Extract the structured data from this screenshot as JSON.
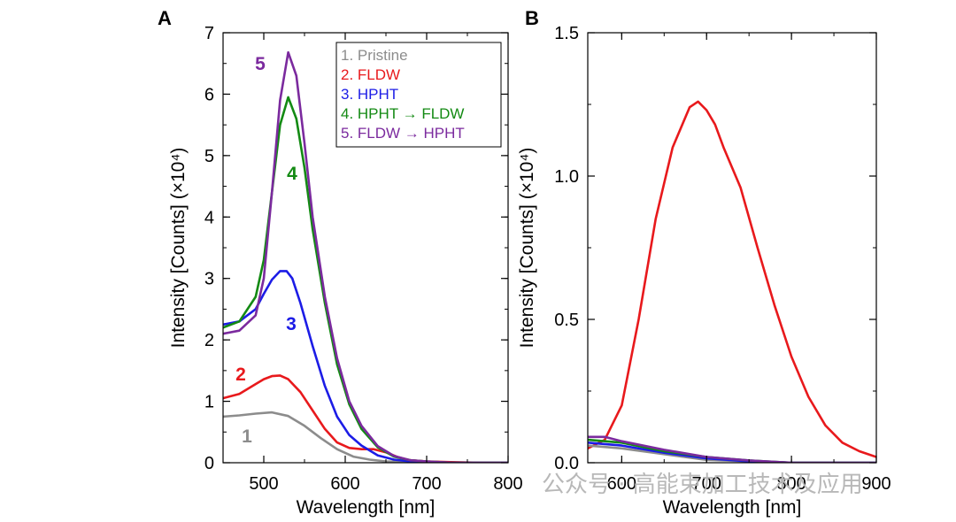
{
  "watermark": "公众号 · 高能束加工技术及应用",
  "chart_data": [
    {
      "type": "line",
      "panel": "A",
      "xlabel": "Wavelength [nm]",
      "ylabel": "Intensity [Counts] (×10⁴)",
      "xlim": [
        450,
        800
      ],
      "ylim": [
        0,
        7
      ],
      "xticks": [
        "500",
        "600",
        "700",
        "800"
      ],
      "yticks": [
        "0",
        "1",
        "2",
        "3",
        "4",
        "5",
        "6",
        "7"
      ],
      "legend": {
        "position": "top-right",
        "entries": [
          "1. Pristine",
          "2. FLDW",
          "3. HPHT",
          "4. HPHT → FLDW",
          "5. FLDW → HPHT"
        ]
      },
      "series": [
        {
          "name": "1. Pristine",
          "label": "1",
          "color": "#8c8c8c",
          "x": [
            450,
            470,
            490,
            510,
            530,
            550,
            570,
            590,
            610,
            630,
            650,
            680,
            720,
            760,
            800
          ],
          "y": [
            0.75,
            0.77,
            0.8,
            0.82,
            0.76,
            0.6,
            0.4,
            0.22,
            0.1,
            0.05,
            0.02,
            0.01,
            0.0,
            0.0,
            0.0
          ]
        },
        {
          "name": "2. FLDW",
          "label": "2",
          "color": "#e8191c",
          "x": [
            450,
            470,
            490,
            500,
            510,
            520,
            530,
            545,
            560,
            575,
            590,
            605,
            620,
            635,
            650,
            665,
            680,
            700,
            730,
            770,
            800
          ],
          "y": [
            1.05,
            1.12,
            1.28,
            1.36,
            1.41,
            1.42,
            1.36,
            1.15,
            0.85,
            0.55,
            0.33,
            0.24,
            0.22,
            0.22,
            0.17,
            0.09,
            0.04,
            0.02,
            0.01,
            0.0,
            0.0
          ]
        },
        {
          "name": "3. HPHT",
          "label": "3",
          "color": "#1c1ce6",
          "x": [
            450,
            470,
            490,
            500,
            510,
            520,
            528,
            535,
            545,
            560,
            575,
            590,
            605,
            620,
            640,
            660,
            680,
            700,
            730,
            770,
            800
          ],
          "y": [
            2.25,
            2.3,
            2.5,
            2.75,
            2.98,
            3.12,
            3.12,
            3.0,
            2.6,
            1.9,
            1.25,
            0.75,
            0.45,
            0.28,
            0.12,
            0.05,
            0.02,
            0.01,
            0.0,
            0.0,
            0.0
          ]
        },
        {
          "name": "4. HPHT → FLDW",
          "label": "4",
          "color": "#138a13",
          "x": [
            450,
            470,
            490,
            500,
            510,
            520,
            530,
            540,
            550,
            560,
            575,
            590,
            605,
            620,
            640,
            660,
            680,
            700,
            730,
            770,
            800
          ],
          "y": [
            2.2,
            2.3,
            2.7,
            3.3,
            4.4,
            5.5,
            5.95,
            5.6,
            4.8,
            3.8,
            2.6,
            1.6,
            0.95,
            0.55,
            0.25,
            0.1,
            0.04,
            0.02,
            0.0,
            0.0,
            0.0
          ]
        },
        {
          "name": "5. FLDW → HPHT",
          "label": "5",
          "color": "#7b2a9e",
          "x": [
            450,
            470,
            490,
            500,
            510,
            520,
            530,
            540,
            550,
            560,
            575,
            590,
            605,
            620,
            640,
            660,
            680,
            700,
            730,
            770,
            800
          ],
          "y": [
            2.1,
            2.15,
            2.4,
            3.0,
            4.4,
            5.9,
            6.68,
            6.3,
            5.2,
            4.0,
            2.7,
            1.7,
            1.0,
            0.6,
            0.27,
            0.11,
            0.04,
            0.02,
            0.0,
            0.0,
            0.0
          ]
        }
      ]
    },
    {
      "type": "line",
      "panel": "B",
      "xlabel": "Wavelength [nm]",
      "ylabel": "Intensity [Counts] (×10⁴)",
      "xlim": [
        560,
        900
      ],
      "ylim": [
        0,
        1.5
      ],
      "xticks": [
        "600",
        "700",
        "800",
        "900"
      ],
      "yticks": [
        "0.0",
        "0.5",
        "1.0",
        "1.5"
      ],
      "series": [
        {
          "name": "2. FLDW",
          "color": "#e8191c",
          "x": [
            560,
            580,
            600,
            620,
            640,
            660,
            680,
            690,
            700,
            710,
            720,
            740,
            760,
            780,
            800,
            820,
            840,
            860,
            880,
            900
          ],
          "y": [
            0.05,
            0.08,
            0.2,
            0.5,
            0.85,
            1.1,
            1.24,
            1.26,
            1.23,
            1.18,
            1.1,
            0.96,
            0.75,
            0.55,
            0.37,
            0.23,
            0.13,
            0.07,
            0.04,
            0.02
          ]
        },
        {
          "name": "1. Pristine",
          "color": "#8c8c8c",
          "x": [
            560,
            600,
            650,
            700,
            750,
            800,
            900
          ],
          "y": [
            0.06,
            0.05,
            0.03,
            0.01,
            0.005,
            0.0,
            0.0
          ]
        },
        {
          "name": "3. HPHT",
          "color": "#1c1ce6",
          "x": [
            560,
            600,
            650,
            700,
            750,
            800,
            900
          ],
          "y": [
            0.07,
            0.06,
            0.035,
            0.015,
            0.005,
            0.0,
            0.0
          ]
        },
        {
          "name": "4. HPHT → FLDW",
          "color": "#138a13",
          "x": [
            560,
            600,
            650,
            700,
            750,
            800,
            900
          ],
          "y": [
            0.08,
            0.07,
            0.04,
            0.02,
            0.008,
            0.0,
            0.0
          ]
        },
        {
          "name": "5. FLDW → HPHT",
          "color": "#7b2a9e",
          "x": [
            560,
            580,
            600,
            650,
            700,
            750,
            800,
            900
          ],
          "y": [
            0.09,
            0.09,
            0.075,
            0.045,
            0.02,
            0.008,
            0.0,
            0.0
          ]
        }
      ]
    }
  ]
}
